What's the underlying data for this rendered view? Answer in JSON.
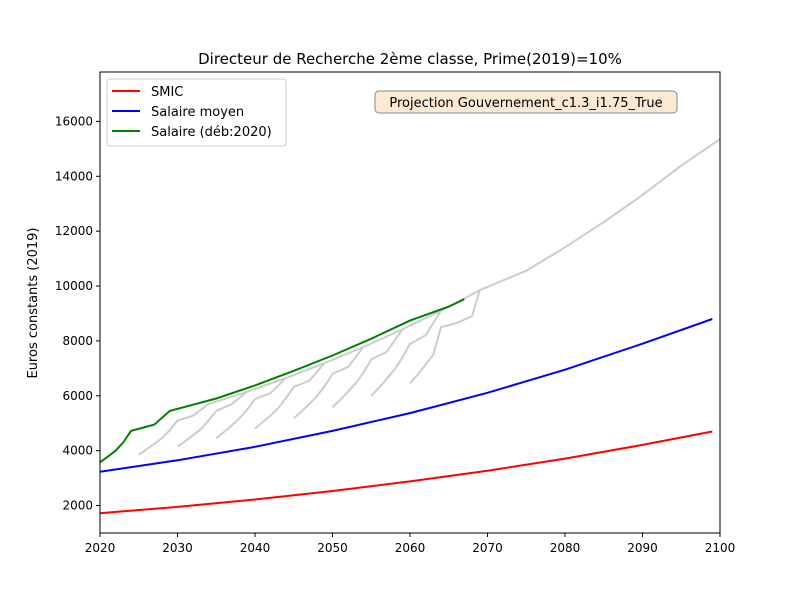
{
  "chart_data": {
    "type": "line",
    "title": "Directeur de Recherche 2ème classe, Prime(2019)=10%",
    "ylabel": "Euros constants (2019)",
    "xlabel": "",
    "xlim": [
      2020,
      2100
    ],
    "ylim": [
      1000,
      17800
    ],
    "xticks": [
      2020,
      2030,
      2040,
      2050,
      2060,
      2070,
      2080,
      2090,
      2100
    ],
    "yticks": [
      2000,
      4000,
      6000,
      8000,
      10000,
      12000,
      14000,
      16000
    ],
    "annotation": "Projection Gouvernement_c1.3_i1.75_True",
    "legend_position": "top-left",
    "grid": false,
    "series": [
      {
        "name": "SMIC",
        "color": "#ff0000",
        "x": [
          2020,
          2030,
          2040,
          2050,
          2060,
          2070,
          2080,
          2090,
          2099
        ],
        "y": [
          1720,
          1950,
          2220,
          2530,
          2880,
          3270,
          3710,
          4210,
          4700
        ]
      },
      {
        "name": "Salaire moyen",
        "color": "#0000ff",
        "x": [
          2020,
          2030,
          2040,
          2050,
          2060,
          2070,
          2080,
          2090,
          2099
        ],
        "y": [
          3230,
          3650,
          4140,
          4720,
          5370,
          6110,
          6950,
          7900,
          8800
        ]
      },
      {
        "name": "Salaire (déb:2020)",
        "color": "#008000",
        "x": [
          2020,
          2021,
          2022,
          2023,
          2024,
          2027,
          2029,
          2035,
          2040,
          2045,
          2050,
          2055,
          2060,
          2065,
          2067
        ],
        "y": [
          3580,
          3780,
          4000,
          4300,
          4720,
          4950,
          5450,
          5900,
          6380,
          6910,
          7470,
          8080,
          8740,
          9250,
          9520
        ]
      }
    ],
    "background_series_color": "#cccccc",
    "background_series": [
      {
        "x": [
          2025,
          2026,
          2027,
          2028,
          2029,
          2030,
          2032,
          2034,
          2039,
          2044,
          2049,
          2054,
          2059,
          2064,
          2069,
          2075,
          2080,
          2085,
          2090,
          2095,
          2100
        ],
        "y": [
          3850,
          4050,
          4250,
          4450,
          4750,
          5100,
          5270,
          5700,
          6150,
          6650,
          7200,
          7780,
          8420,
          9100,
          9850,
          10560,
          11410,
          12330,
          13320,
          14390,
          15350
        ]
      },
      {
        "x": [
          2030,
          2031,
          2032,
          2033,
          2034,
          2035,
          2037,
          2039,
          2044
        ],
        "y": [
          4150,
          4350,
          4560,
          4780,
          5100,
          5450,
          5700,
          6150,
          6650
        ]
      },
      {
        "x": [
          2035,
          2036,
          2037,
          2038,
          2039,
          2040,
          2042,
          2044
        ],
        "y": [
          4450,
          4680,
          4920,
          5180,
          5500,
          5880,
          6100,
          6650
        ]
      },
      {
        "x": [
          2040,
          2041,
          2042,
          2043,
          2044,
          2045,
          2047,
          2049
        ],
        "y": [
          4800,
          5050,
          5280,
          5550,
          5920,
          6320,
          6550,
          7200
        ]
      },
      {
        "x": [
          2045,
          2046,
          2047,
          2048,
          2049,
          2050,
          2052,
          2054
        ],
        "y": [
          5180,
          5430,
          5700,
          5990,
          6360,
          6800,
          7050,
          7780
        ]
      },
      {
        "x": [
          2050,
          2051,
          2052,
          2053,
          2054,
          2055,
          2057,
          2059
        ],
        "y": [
          5580,
          5850,
          6150,
          6460,
          6850,
          7330,
          7600,
          8420
        ]
      },
      {
        "x": [
          2055,
          2056,
          2057,
          2058,
          2059,
          2060,
          2062,
          2064
        ],
        "y": [
          6000,
          6300,
          6620,
          6960,
          7380,
          7900,
          8200,
          9100
        ]
      },
      {
        "x": [
          2060,
          2061,
          2062,
          2063,
          2064,
          2066,
          2068,
          2069
        ],
        "y": [
          6450,
          6780,
          7130,
          7500,
          8500,
          8650,
          8900,
          9850
        ]
      }
    ]
  }
}
